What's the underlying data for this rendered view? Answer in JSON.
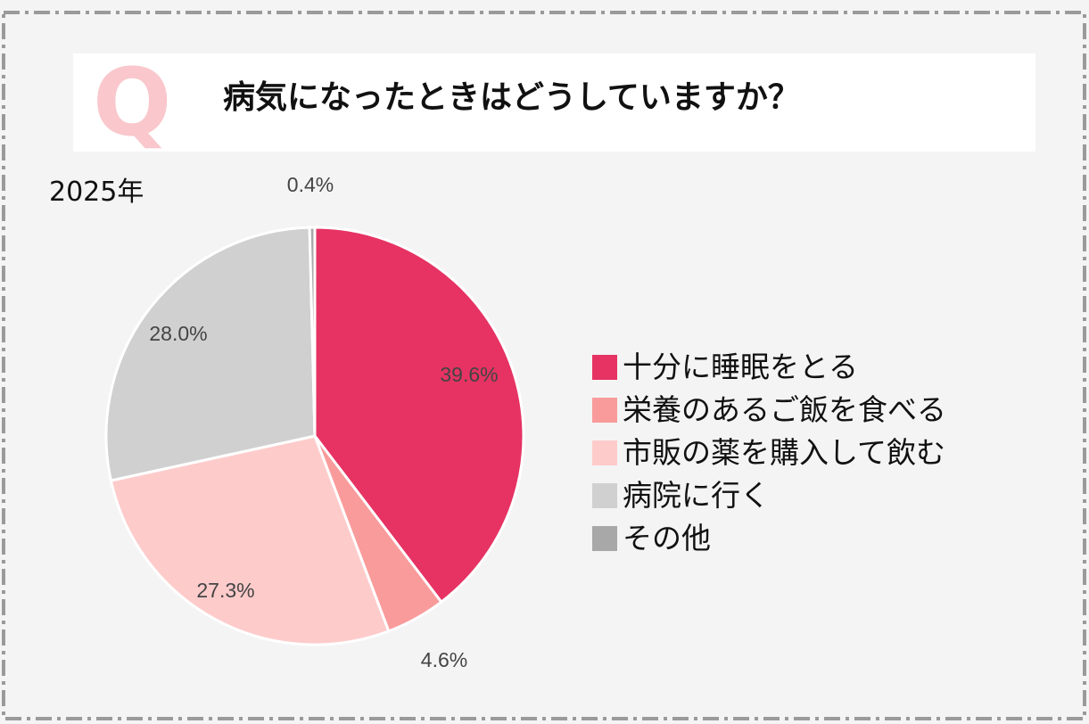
{
  "header": {
    "q_mark": "Q",
    "title": "病気になったときはどうしていますか？"
  },
  "year_label": "2025年",
  "colors": {
    "background": "#f4f4f4",
    "accent": "#e63363"
  },
  "chart_data": {
    "type": "pie",
    "title": "病気になったときはどうしていますか？",
    "subtitle": "2025年",
    "legend_position": "right",
    "slices": [
      {
        "label": "十分に睡眠をとる",
        "value": 39.6,
        "display": "39.6%",
        "color": "#e63363"
      },
      {
        "label": "栄養のあるご飯を食べる",
        "value": 4.6,
        "display": "4.6%",
        "color": "#f99b9b"
      },
      {
        "label": "市販の薬を購入して飲む",
        "value": 27.3,
        "display": "27.3%",
        "color": "#fecbcb"
      },
      {
        "label": "病院に行く",
        "value": 28.0,
        "display": "28.0%",
        "color": "#d0d0d0"
      },
      {
        "label": "その他",
        "value": 0.4,
        "display": "0.4%",
        "color": "#a8a8a8"
      }
    ]
  }
}
